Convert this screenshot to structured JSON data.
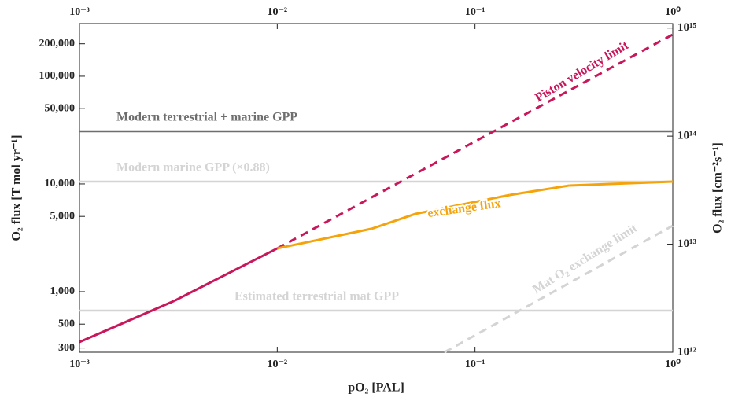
{
  "chart_data": {
    "type": "line",
    "xlabel": "pO₂ [PAL]",
    "ylabel": "O₂ flux [T mol yr⁻¹]",
    "y2label": "O₂ flux [cm⁻²s⁻¹]",
    "xscale": "log",
    "yscale": "log",
    "y2scale": "log",
    "xlim": [
      0.001,
      1
    ],
    "xticks": [
      {
        "value": 0.001,
        "label": "10⁻³"
      },
      {
        "value": 0.01,
        "label": "10⁻²"
      },
      {
        "value": 0.1,
        "label": "10⁻¹"
      },
      {
        "value": 1,
        "label": "10⁰"
      }
    ],
    "ylim": [
      274,
      308000
    ],
    "yticks": [
      300,
      500,
      {
        "value": 1000,
        "label": "1,000"
      },
      {
        "value": 5000,
        "label": "5,000"
      },
      {
        "value": 10000,
        "label": "10,000"
      },
      {
        "value": 50000,
        "label": "50,000"
      },
      {
        "value": 100000,
        "label": "100,000"
      },
      {
        "value": 200000,
        "label": "200,000"
      }
    ],
    "y2lim": [
      1000000000000.0,
      1100000000000000.0
    ],
    "y2ticks": [
      {
        "value": 1000000000000.0,
        "label": "10¹²"
      },
      {
        "value": 10000000000000.0,
        "label": "10¹³"
      },
      {
        "value": 100000000000000.0,
        "label": "10¹⁴"
      },
      {
        "value": 1000000000000000.0,
        "label": "10¹⁵"
      }
    ],
    "series": [
      {
        "name": "Piston velocity limit",
        "color": "#c8175b",
        "x": [
          0.001,
          0.003,
          0.01,
          1
        ],
        "values": [
          341,
          818,
          2520,
          244000
        ],
        "linestyles": [
          "solid",
          "solid",
          "dashed"
        ]
      },
      {
        "name": "exchange flux",
        "color": "#f5a30a",
        "x": [
          0.01,
          0.03,
          0.05,
          0.15,
          0.3,
          1
        ],
        "values": [
          2520,
          3840,
          5280,
          7900,
          9670,
          10500
        ],
        "linestyles": [
          "solid",
          "solid",
          "solid",
          "solid",
          "solid"
        ]
      },
      {
        "name": "Mat O₂ exchange limit",
        "color": "#d4d4d4",
        "x": [
          0.07,
          1
        ],
        "values": [
          274,
          4100
        ],
        "linestyles": [
          "dashed"
        ]
      }
    ],
    "hlines": [
      {
        "name": "Modern terrestrial + marine GPP",
        "color": "#6e6e6e",
        "value": 30800
      },
      {
        "name": "Modern marine GPP (×0.88)",
        "color": "#d4d4d4",
        "value": 10500
      },
      {
        "name": "Estimated terrestrial mat GPP",
        "color": "#d4d4d4",
        "value": 668
      }
    ]
  }
}
